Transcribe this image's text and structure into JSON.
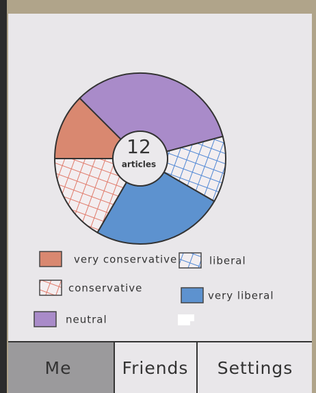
{
  "chart_data": {
    "type": "donut",
    "center_value": 12,
    "center_label": "articles",
    "categories": [
      "very conservative",
      "conservative",
      "neutral",
      "liberal",
      "very liberal"
    ],
    "values": [
      1.5,
      2,
      4,
      1.5,
      3
    ],
    "colors": [
      "#d98870",
      "#e07a6a",
      "#a98bc9",
      "#4f86d4",
      "#5d92cf"
    ],
    "hatched": [
      false,
      true,
      false,
      true,
      false
    ]
  },
  "tabs": [
    "Me",
    "Friends",
    "Settings"
  ]
}
